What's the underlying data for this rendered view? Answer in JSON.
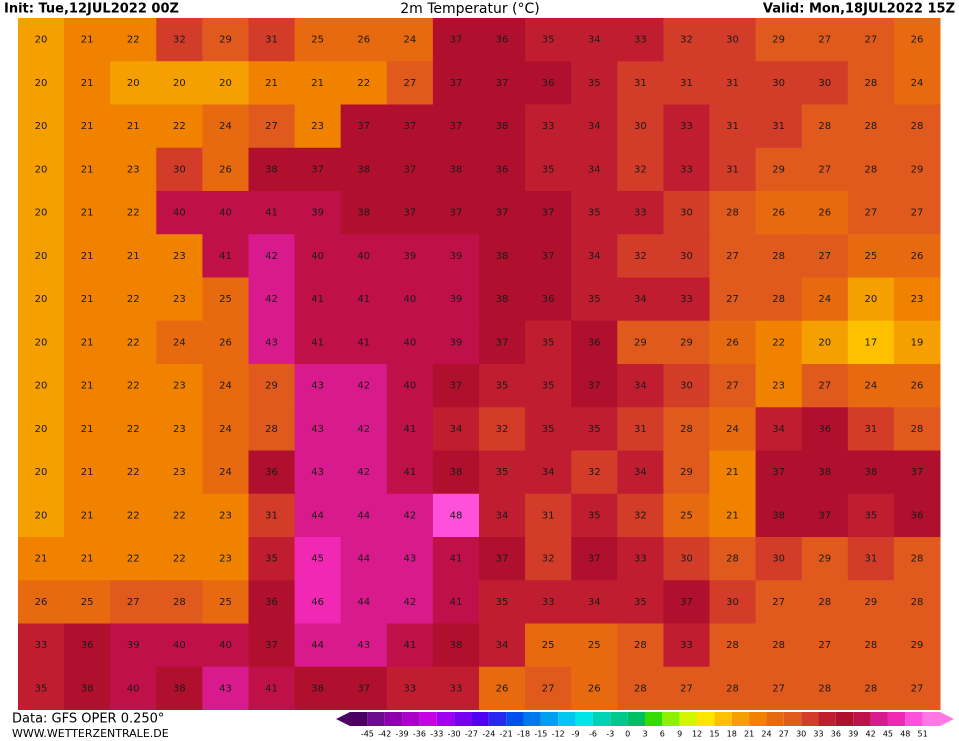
{
  "header": {
    "init": "Init: Tue,12JUL2022 00Z",
    "title": "2m Temperatur (°C)",
    "valid": "Valid: Mon,18JUL2022 15Z"
  },
  "footer": {
    "data": "Data: GFS OPER 0.250°",
    "site": "WWW.WETTERZENTRALE.DE"
  },
  "legend": {
    "ticks": [
      -45,
      -42,
      -39,
      -36,
      -33,
      -30,
      -27,
      -24,
      -21,
      -18,
      -15,
      -12,
      -9,
      -6,
      -3,
      0,
      3,
      6,
      9,
      12,
      15,
      18,
      21,
      24,
      27,
      30,
      33,
      36,
      39,
      42,
      45,
      48,
      51
    ],
    "colors": [
      "#4b0064",
      "#6e0a8c",
      "#8c00aa",
      "#aa00c8",
      "#c800e6",
      "#a000f0",
      "#7800f0",
      "#5000f0",
      "#2828f0",
      "#0050f0",
      "#0078f0",
      "#00a0f0",
      "#00c8f0",
      "#00e6e6",
      "#00d2b4",
      "#00c88c",
      "#00be64",
      "#32dc00",
      "#8cf000",
      "#d2f500",
      "#ffe600",
      "#ffc000",
      "#f5a000",
      "#f08200",
      "#e86a10",
      "#e05a1e",
      "#d23c28",
      "#c01e30",
      "#b0102e",
      "#c0104a",
      "#d81a8c",
      "#f028b4",
      "#ff50dc",
      "#ff78e6"
    ]
  },
  "temperatures": [
    [
      20,
      21,
      22,
      32,
      29,
      31,
      25,
      26,
      24,
      37,
      36,
      35,
      34,
      33,
      32,
      30,
      29,
      27,
      27,
      26
    ],
    [
      20,
      21,
      20,
      20,
      20,
      21,
      21,
      22,
      27,
      37,
      37,
      36,
      35,
      31,
      31,
      31,
      30,
      30,
      28,
      24
    ],
    [
      20,
      21,
      21,
      22,
      24,
      27,
      23,
      37,
      37,
      37,
      38,
      33,
      34,
      30,
      33,
      31,
      31,
      28,
      28,
      28
    ],
    [
      20,
      21,
      23,
      30,
      26,
      38,
      37,
      38,
      37,
      38,
      36,
      35,
      34,
      32,
      33,
      31,
      29,
      27,
      28,
      29
    ],
    [
      20,
      21,
      22,
      40,
      40,
      41,
      39,
      38,
      37,
      37,
      37,
      37,
      35,
      33,
      30,
      28,
      26,
      26,
      27,
      27
    ],
    [
      20,
      21,
      21,
      23,
      41,
      42,
      40,
      40,
      39,
      39,
      38,
      37,
      34,
      32,
      30,
      27,
      28,
      27,
      25,
      26
    ],
    [
      20,
      21,
      22,
      23,
      25,
      42,
      41,
      41,
      40,
      39,
      38,
      36,
      35,
      34,
      33,
      27,
      28,
      24,
      20,
      23
    ],
    [
      20,
      21,
      22,
      24,
      26,
      43,
      41,
      41,
      40,
      39,
      37,
      35,
      36,
      29,
      29,
      26,
      22,
      20,
      17,
      19
    ],
    [
      20,
      21,
      22,
      23,
      24,
      29,
      43,
      42,
      40,
      37,
      35,
      35,
      37,
      34,
      30,
      27,
      23,
      27,
      24,
      26
    ],
    [
      20,
      21,
      22,
      23,
      24,
      28,
      43,
      42,
      41,
      34,
      32,
      35,
      35,
      31,
      28,
      24,
      34,
      36,
      31,
      28
    ],
    [
      20,
      21,
      22,
      23,
      24,
      36,
      43,
      42,
      41,
      38,
      35,
      34,
      32,
      34,
      29,
      21,
      37,
      38,
      38,
      37
    ],
    [
      20,
      21,
      22,
      22,
      23,
      31,
      44,
      44,
      42,
      48,
      34,
      31,
      35,
      32,
      25,
      21,
      38,
      37,
      35,
      36
    ],
    [
      21,
      21,
      22,
      22,
      23,
      35,
      45,
      44,
      43,
      41,
      37,
      32,
      37,
      33,
      30,
      28,
      30,
      29,
      31,
      28
    ],
    [
      26,
      25,
      27,
      28,
      25,
      36,
      46,
      44,
      42,
      41,
      35,
      33,
      34,
      35,
      37,
      30,
      27,
      28,
      29,
      28
    ],
    [
      33,
      36,
      39,
      40,
      40,
      37,
      44,
      43,
      41,
      38,
      34,
      25,
      25,
      28,
      33,
      28,
      28,
      27,
      28,
      29
    ],
    [
      35,
      38,
      40,
      38,
      43,
      41,
      38,
      37,
      33,
      33,
      26,
      27,
      26,
      28,
      27,
      28,
      27,
      28,
      28,
      27
    ]
  ]
}
